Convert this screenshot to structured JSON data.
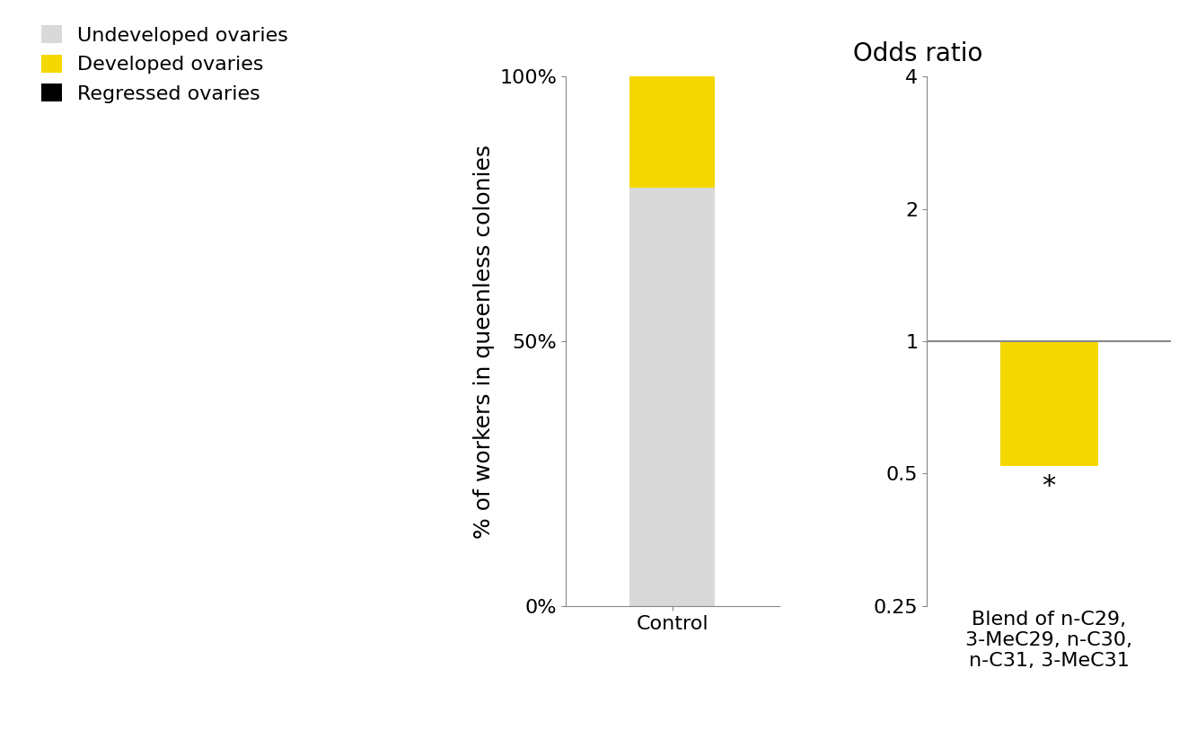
{
  "chart_data": [
    {
      "type": "bar",
      "stacked": true,
      "categories": [
        "Control"
      ],
      "y_label": "% of workers in queenless colonies",
      "series": [
        {
          "name": "Undeveloped ovaries",
          "color": "#d9d9d9",
          "values": [
            79
          ]
        },
        {
          "name": "Developed ovaries",
          "color": "#f5d800",
          "values": [
            21
          ]
        },
        {
          "name": "Regressed ovaries",
          "color": "#000000",
          "values": [
            0
          ]
        }
      ],
      "ylim": [
        0,
        100
      ],
      "yticks": [
        {
          "value": 0,
          "label": "0%"
        },
        {
          "value": 50,
          "label": "50%"
        },
        {
          "value": 100,
          "label": "100%"
        }
      ],
      "legend": "upper left"
    },
    {
      "type": "bar",
      "title": "Odds ratio",
      "log": "y",
      "categories": [
        "Blend of n-C29, 3-MeC29, n-C30, n-C31, 3-MeC31"
      ],
      "values": [
        0.52
      ],
      "color": "#f5d800",
      "annotations": [
        "*"
      ],
      "ylim": [
        0.25,
        4
      ],
      "yticks": [
        0.25,
        0.5,
        1,
        2,
        4
      ]
    }
  ]
}
